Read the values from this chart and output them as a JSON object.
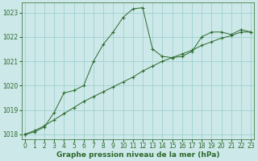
{
  "x": [
    0,
    1,
    2,
    3,
    4,
    5,
    6,
    7,
    8,
    9,
    10,
    11,
    12,
    13,
    14,
    15,
    16,
    17,
    18,
    19,
    20,
    21,
    22,
    23
  ],
  "series1": [
    1018.0,
    1018.1,
    1018.3,
    1018.9,
    1019.7,
    1019.8,
    1020.0,
    1021.0,
    1021.7,
    1022.2,
    1022.8,
    1023.15,
    1023.2,
    1021.5,
    1021.2,
    1021.15,
    1021.2,
    1021.4,
    1022.0,
    1022.2,
    1022.2,
    1022.1,
    1022.3,
    1022.2
  ],
  "series2": [
    1018.0,
    1018.15,
    1018.35,
    1018.6,
    1018.85,
    1019.1,
    1019.35,
    1019.55,
    1019.75,
    1019.95,
    1020.15,
    1020.35,
    1020.6,
    1020.8,
    1021.0,
    1021.15,
    1021.3,
    1021.45,
    1021.65,
    1021.8,
    1021.95,
    1022.05,
    1022.2,
    1022.2
  ],
  "line_color": "#2d6a2d",
  "bg_color": "#cce8e8",
  "grid_color": "#99cccc",
  "xlabel": "Graphe pression niveau de la mer (hPa)",
  "ylim_min": 1017.8,
  "ylim_max": 1023.4,
  "yticks": [
    1018,
    1019,
    1020,
    1021,
    1022,
    1023
  ],
  "xticks": [
    0,
    1,
    2,
    3,
    4,
    5,
    6,
    7,
    8,
    9,
    10,
    11,
    12,
    13,
    14,
    15,
    16,
    17,
    18,
    19,
    20,
    21,
    22,
    23
  ],
  "xlabel_color": "#2d6a2d",
  "xlabel_fontsize": 6.5,
  "tick_fontsize": 5.5,
  "marker": "+"
}
